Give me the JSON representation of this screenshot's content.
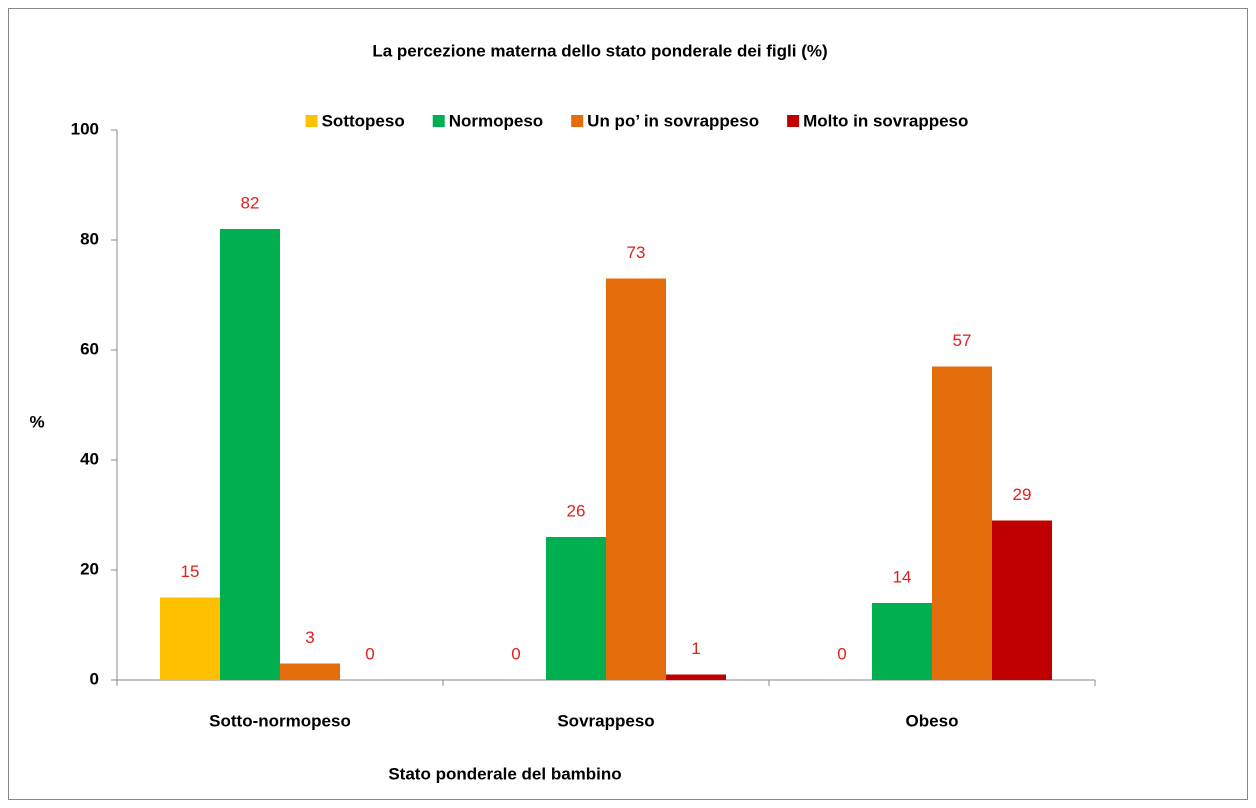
{
  "chart_data": {
    "type": "bar",
    "title": "La percezione materna dello stato ponderale dei figli (%)",
    "x_label": "Stato ponderale  del bambino",
    "y_label": "%",
    "categories": [
      "Sotto-normopeso",
      "Sovrappeso",
      "Obeso"
    ],
    "series": [
      {
        "name": "Sottopeso",
        "color": "#ffc000",
        "values": [
          15,
          0,
          0
        ]
      },
      {
        "name": "Normopeso",
        "color": "#00b050",
        "values": [
          82,
          26,
          14
        ]
      },
      {
        "name": "Un po’ in sovrappeso",
        "color": "#e46c0a",
        "values": [
          3,
          73,
          57
        ]
      },
      {
        "name": "Molto in sovrappeso",
        "color": "#c00000",
        "values": [
          0,
          1,
          29
        ]
      }
    ],
    "ylim": [
      0,
      100
    ],
    "yticks": [
      0,
      20,
      40,
      60,
      80,
      100
    ],
    "legend": "top"
  }
}
